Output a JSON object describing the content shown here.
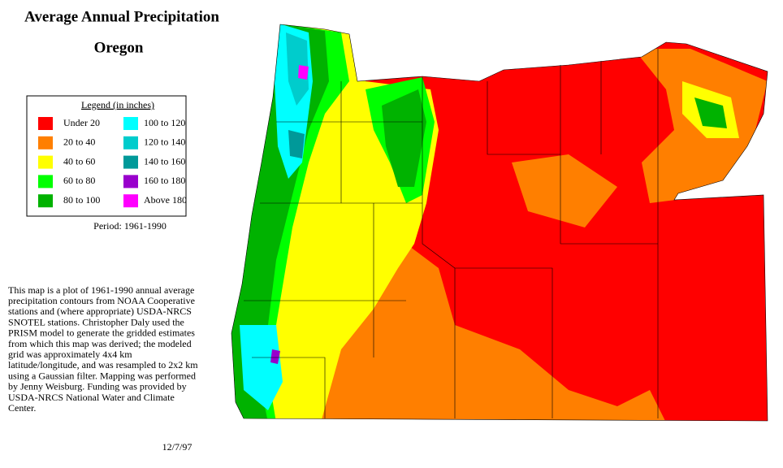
{
  "title": "Average Annual Precipitation",
  "subtitle": "Oregon",
  "legend": {
    "title": "Legend (in inches)",
    "items": [
      {
        "label": "Under 20",
        "color": "#ff0000"
      },
      {
        "label": "20 to 40",
        "color": "#ff7f00"
      },
      {
        "label": "40 to 60",
        "color": "#ffff00"
      },
      {
        "label": "60 to 80",
        "color": "#00ff00"
      },
      {
        "label": "80 to 100",
        "color": "#00b200"
      },
      {
        "label": "100 to 120",
        "color": "#00ffff"
      },
      {
        "label": "120 to 140",
        "color": "#00cccc"
      },
      {
        "label": "140 to 160",
        "color": "#009999"
      },
      {
        "label": "160 to 180",
        "color": "#9900cc"
      },
      {
        "label": "Above 180",
        "color": "#ff00ff"
      }
    ]
  },
  "period": "Period: 1961-1990",
  "description": [
    "This map is a plot of 1961-1990 annual average",
    "precipitation contours from NOAA Cooperative",
    "stations and (where appropriate) USDA-NRCS",
    "SNOTEL stations. Christopher Daly used the",
    "PRISM model to generate the gridded estimates",
    "from which this map was derived; the modeled",
    "grid was approximately 4x4 km",
    "latitude/longitude, and was resampled to 2x2 km",
    "using a Gaussian filter. Mapping was performed",
    "by Jenny Weisburg. Funding was provided by",
    "USDA-NRCS National Water and Climate",
    "Center."
  ],
  "date": "12/7/97"
}
